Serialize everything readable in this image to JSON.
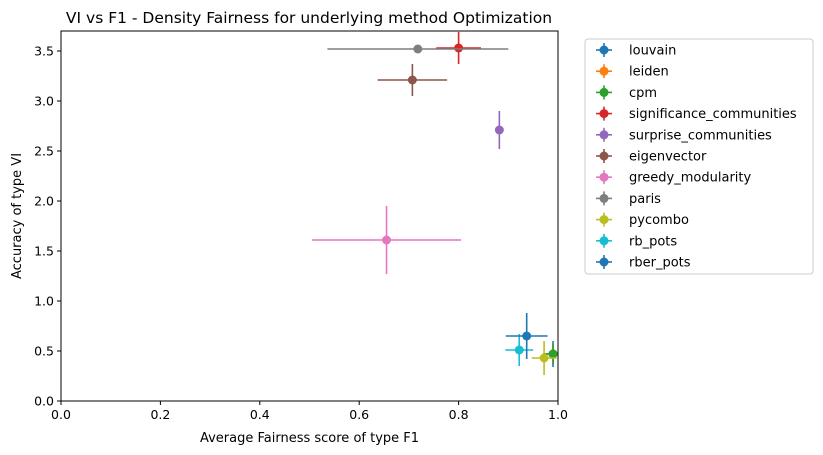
{
  "chart_data": {
    "type": "scatter",
    "title": "VI vs F1 - Density Fairness for underlying method Optimization",
    "xlabel": "Average Fairness score of type F1",
    "ylabel": "Accuracy of type VI",
    "xlim": [
      0.0,
      1.0
    ],
    "ylim": [
      0.0,
      3.7
    ],
    "xticks": [
      "0.0",
      "0.2",
      "0.4",
      "0.6",
      "0.8",
      "1.0"
    ],
    "yticks": [
      "0.0",
      "0.5",
      "1.0",
      "1.5",
      "2.0",
      "2.5",
      "3.0",
      "3.5"
    ],
    "grid": false,
    "legend_position": "outside-right",
    "series": [
      {
        "name": "louvain",
        "color": "#1f77b4",
        "x": 0.99,
        "y": 0.47,
        "xerr": 0.02,
        "yerr": 0.13
      },
      {
        "name": "leiden",
        "color": "#ff7f0e",
        "x": 0.99,
        "y": 0.47,
        "xerr": 0.02,
        "yerr": 0.1
      },
      {
        "name": "cpm",
        "color": "#2ca02c",
        "x": 0.99,
        "y": 0.47,
        "xerr": 0.02,
        "yerr": 0.1
      },
      {
        "name": "significance_communities",
        "color": "#d62728",
        "x": 0.8,
        "y": 3.53,
        "xerr": 0.045,
        "yerr": 0.16
      },
      {
        "name": "surprise_communities",
        "color": "#9467bd",
        "x": 0.882,
        "y": 2.71,
        "xerr": 0.005,
        "yerr": 0.19
      },
      {
        "name": "eigenvector",
        "color": "#8c564b",
        "x": 0.707,
        "y": 3.21,
        "xerr": 0.07,
        "yerr": 0.16
      },
      {
        "name": "greedy_modularity",
        "color": "#e377c2",
        "x": 0.655,
        "y": 1.61,
        "xerr": 0.15,
        "yerr": 0.34
      },
      {
        "name": "paris",
        "color": "#7f7f7f",
        "x": 0.718,
        "y": 3.52,
        "xerr": 0.182,
        "yerr": 0.0
      },
      {
        "name": "pycombo",
        "color": "#bcbd22",
        "x": 0.972,
        "y": 0.43,
        "xerr": 0.025,
        "yerr": 0.17
      },
      {
        "name": "rb_pots",
        "color": "#17becf",
        "x": 0.922,
        "y": 0.51,
        "xerr": 0.028,
        "yerr": 0.16
      },
      {
        "name": "rber_pots",
        "color": "#1f77b4",
        "x": 0.937,
        "y": 0.65,
        "xerr": 0.042,
        "yerr": 0.23
      }
    ]
  }
}
